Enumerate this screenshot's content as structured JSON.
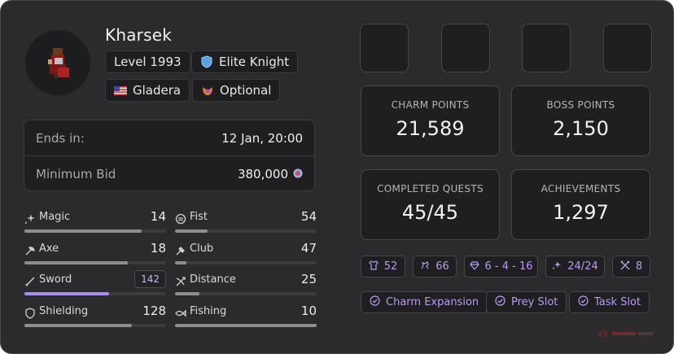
{
  "character": {
    "name": "Kharsek",
    "level": "Level 1993",
    "vocation": "Elite Knight",
    "world": "Gladera",
    "pvp_type": "Optional"
  },
  "auction": {
    "ends_label": "Ends in:",
    "ends_value": "12 Jan, 20:00",
    "bid_label": "Minimum Bid",
    "bid_value": "380,000"
  },
  "skills": [
    {
      "name": "Magic",
      "value": "14",
      "level_fraction": 0.83,
      "icon": "magic-icon"
    },
    {
      "name": "Fist",
      "value": "54",
      "level_fraction": 0.23,
      "icon": "fist-icon"
    },
    {
      "name": "Axe",
      "value": "18",
      "level_fraction": 0.73,
      "icon": "axe-icon"
    },
    {
      "name": "Club",
      "value": "47",
      "level_fraction": 0.08,
      "icon": "club-icon"
    },
    {
      "name": "Sword",
      "value": "142",
      "level_fraction": 0.6,
      "icon": "sword-icon",
      "highlighted": true
    },
    {
      "name": "Distance",
      "value": "25",
      "level_fraction": 0.17,
      "icon": "distance-icon"
    },
    {
      "name": "Shielding",
      "value": "128",
      "level_fraction": 0.76,
      "icon": "shielding-icon"
    },
    {
      "name": "Fishing",
      "value": "10",
      "level_fraction": 1.0,
      "icon": "fishing-icon"
    }
  ],
  "stats": [
    {
      "label": "CHARM POINTS",
      "value": "21,589"
    },
    {
      "label": "BOSS POINTS",
      "value": "2,150"
    },
    {
      "label": "COMPLETED QUESTS",
      "value": "45/45"
    },
    {
      "label": "ACHIEVEMENTS",
      "value": "1,297"
    }
  ],
  "mini_stats": [
    {
      "value": "52",
      "icon": "outfit-icon"
    },
    {
      "value": "66",
      "icon": "mount-icon"
    },
    {
      "value": "6 - 4 - 16",
      "icon": "gem-icon"
    },
    {
      "value": "24/24",
      "icon": "sparkle-icon"
    },
    {
      "value": "8",
      "icon": "crossed-swords-icon"
    }
  ],
  "features": [
    {
      "label": "Charm Expansion",
      "icon": "check-circle-icon"
    },
    {
      "label": "Prey Slot",
      "icon": "check-circle-icon"
    },
    {
      "label": "Task Slot",
      "icon": "check-circle-icon"
    }
  ],
  "colors": {
    "background": "#2b2b2e",
    "panel": "#1f1f21",
    "accent": "#b99bf2",
    "bar_accent": "#a98bf0",
    "bar_default": "#8e8e92"
  }
}
